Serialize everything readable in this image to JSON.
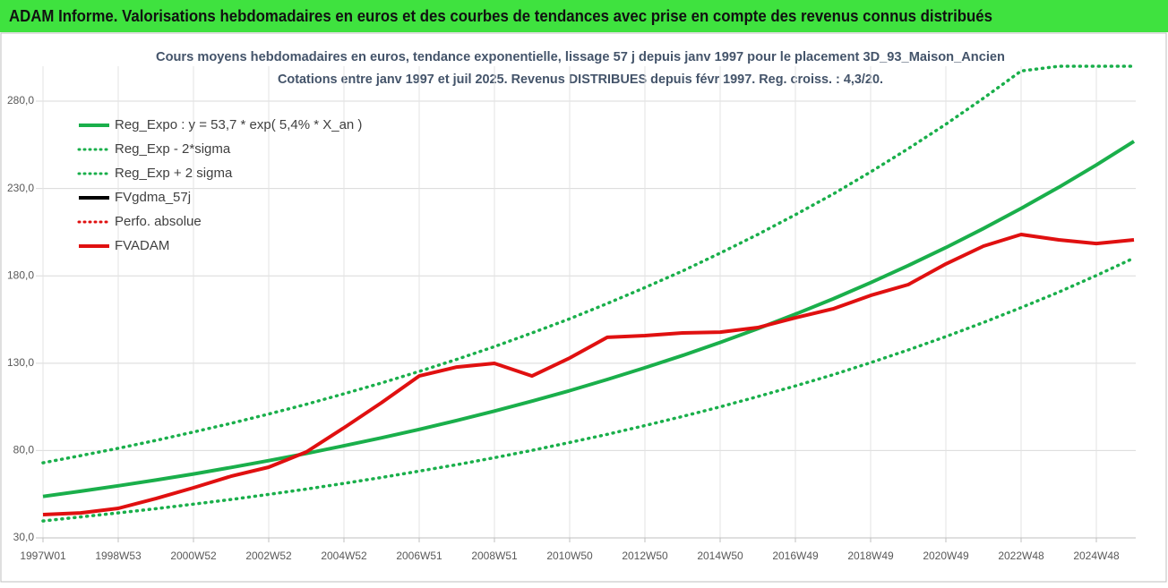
{
  "header": {
    "title": "ADAM Informe. Valorisations hebdomadaires en euros et des courbes de tendances avec prise en compte des revenus connus distribués"
  },
  "chart_data": {
    "type": "line",
    "title": "Cours moyens hebdomadaires en euros, tendance exponentielle, lissage 57 j depuis janv 1997 pour le placement 3D_93_Maison_Ancien",
    "subtitle": "Cotations entre janv 1997 et juil 2025. Revenus DISTRIBUES depuis févr 1997. Reg. croiss. : 4,3/20.",
    "categories": [
      "1997W01",
      null,
      "1998W53",
      null,
      "2000W52",
      null,
      "2002W52",
      null,
      "2004W52",
      null,
      "2006W51",
      null,
      "2008W51",
      null,
      "2010W50",
      null,
      "2012W50",
      null,
      "2014W50",
      null,
      "2016W49",
      null,
      "2018W49",
      null,
      "2020W49",
      null,
      "2022W48",
      null,
      "2024W48",
      null
    ],
    "series": [
      {
        "name": "Reg_Expo : y = 53,7 * exp( 5,4% *  X_an )",
        "color": "#1aaf4b",
        "style": "solid",
        "values": [
          53.7,
          56.7,
          59.8,
          63.1,
          66.6,
          70.3,
          74.2,
          78.3,
          82.7,
          87.3,
          92.1,
          97.2,
          102.6,
          108.3,
          114.3,
          120.7,
          127.4,
          134.4,
          141.9,
          149.8,
          158.1,
          166.8,
          176.1,
          185.9,
          196.2,
          207.1,
          218.6,
          230.7,
          243.5,
          257.0
        ]
      },
      {
        "name": "Reg_Exp - 2*sigma",
        "color": "#1aaf4b",
        "style": "dotted",
        "values": [
          39.7,
          42.0,
          44.3,
          46.7,
          49.3,
          52.0,
          54.9,
          57.9,
          61.2,
          64.6,
          68.2,
          71.9,
          75.9,
          80.1,
          84.6,
          89.3,
          94.3,
          99.5,
          105.0,
          110.9,
          117.0,
          123.4,
          130.3,
          137.6,
          145.2,
          153.3,
          161.8,
          170.7,
          180.2,
          190.2
        ]
      },
      {
        "name": "Reg_Exp + 2 sigma",
        "color": "#1aaf4b",
        "style": "dotted",
        "values": [
          73.0,
          77.1,
          81.3,
          85.8,
          90.6,
          95.6,
          100.9,
          106.5,
          112.5,
          118.7,
          125.3,
          132.2,
          139.5,
          147.3,
          155.4,
          164.2,
          173.3,
          182.8,
          193.0,
          203.7,
          215.0,
          226.8,
          239.5,
          252.8,
          266.8,
          281.7,
          297.3,
          300,
          300,
          300
        ]
      },
      {
        "name": "FVgdma_57j",
        "color": "#000000",
        "style": "solid"
      },
      {
        "name": "Perfo. absolue",
        "color": "#e01010",
        "style": "dotted"
      },
      {
        "name": "FVADAM",
        "color": "#e01010",
        "style": "solid",
        "values": [
          43.3,
          44.3,
          46.9,
          52.5,
          58.7,
          65.3,
          70.5,
          79.2,
          93.0,
          107.4,
          122.7,
          127.8,
          129.9,
          122.7,
          133.0,
          144.8,
          145.8,
          147.3,
          147.8,
          150.4,
          156.0,
          161.1,
          168.8,
          175.0,
          186.8,
          197.0,
          203.7,
          200.6,
          198.5,
          200.6
        ]
      }
    ],
    "ylim": [
      30,
      300
    ],
    "yticks": [
      {
        "value": 30,
        "label": "30,0"
      },
      {
        "value": 80,
        "label": "80,0"
      },
      {
        "value": 130,
        "label": "130,0"
      },
      {
        "value": 180,
        "label": "180,0"
      },
      {
        "value": 230,
        "label": "230,0"
      },
      {
        "value": 280,
        "label": "280,0"
      }
    ],
    "grid": true
  }
}
